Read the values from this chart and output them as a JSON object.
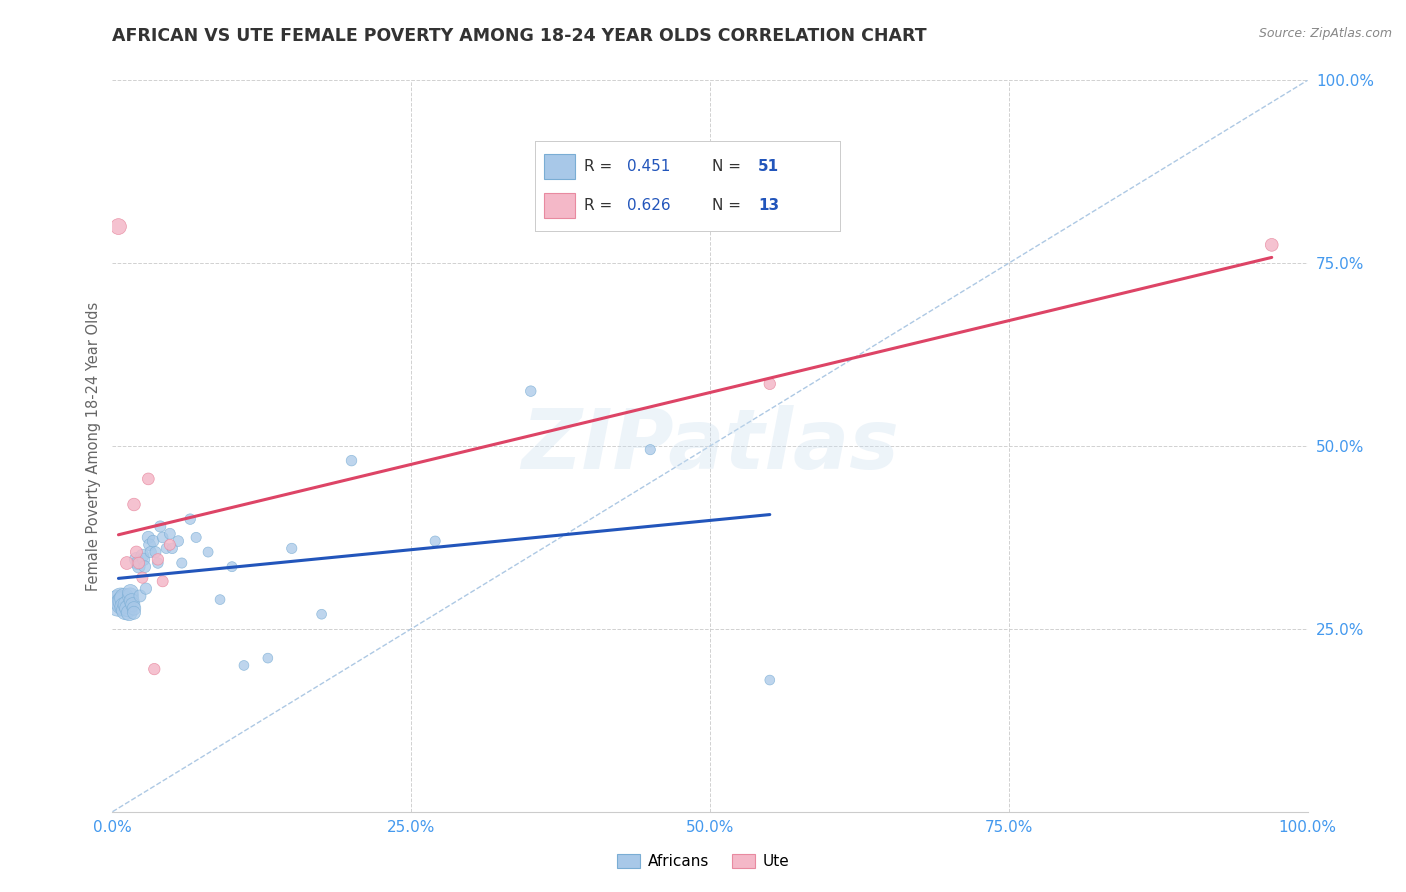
{
  "title": "AFRICAN VS UTE FEMALE POVERTY AMONG 18-24 YEAR OLDS CORRELATION CHART",
  "source": "Source: ZipAtlas.com",
  "ylabel": "Female Poverty Among 18-24 Year Olds",
  "watermark_text": "ZIPatlas",
  "african_R": 0.451,
  "african_N": 51,
  "ute_R": 0.626,
  "ute_N": 13,
  "african_color": "#a8c8e8",
  "african_color_edge": "#7aadd4",
  "ute_color": "#f4b8c8",
  "ute_color_edge": "#e88aa0",
  "trend_african_color": "#2255bb",
  "trend_ute_color": "#dd4466",
  "diagonal_color": "#99bbdd",
  "background_color": "#ffffff",
  "grid_color": "#cccccc",
  "title_color": "#333333",
  "axis_tick_color": "#4499ee",
  "ylabel_color": "#666666",
  "african_x": [
    0.005,
    0.007,
    0.008,
    0.009,
    0.01,
    0.01,
    0.011,
    0.012,
    0.013,
    0.014,
    0.015,
    0.015,
    0.016,
    0.017,
    0.018,
    0.018,
    0.02,
    0.021,
    0.022,
    0.023,
    0.025,
    0.026,
    0.027,
    0.028,
    0.03,
    0.031,
    0.032,
    0.034,
    0.036,
    0.038,
    0.04,
    0.042,
    0.045,
    0.048,
    0.05,
    0.055,
    0.058,
    0.065,
    0.07,
    0.08,
    0.09,
    0.1,
    0.11,
    0.13,
    0.15,
    0.175,
    0.2,
    0.27,
    0.35,
    0.45,
    0.55
  ],
  "african_y": [
    0.285,
    0.29,
    0.285,
    0.288,
    0.292,
    0.28,
    0.275,
    0.283,
    0.278,
    0.272,
    0.295,
    0.3,
    0.288,
    0.283,
    0.278,
    0.272,
    0.345,
    0.34,
    0.335,
    0.295,
    0.35,
    0.345,
    0.335,
    0.305,
    0.375,
    0.365,
    0.355,
    0.37,
    0.355,
    0.34,
    0.39,
    0.375,
    0.36,
    0.38,
    0.36,
    0.37,
    0.34,
    0.4,
    0.375,
    0.355,
    0.29,
    0.335,
    0.2,
    0.21,
    0.36,
    0.27,
    0.48,
    0.37,
    0.575,
    0.495,
    0.18
  ],
  "ute_x": [
    0.005,
    0.012,
    0.018,
    0.02,
    0.022,
    0.025,
    0.03,
    0.035,
    0.038,
    0.042,
    0.048,
    0.55,
    0.97
  ],
  "ute_y": [
    0.8,
    0.34,
    0.42,
    0.355,
    0.34,
    0.32,
    0.455,
    0.195,
    0.345,
    0.315,
    0.365,
    0.585,
    0.775
  ],
  "african_sizes": [
    350,
    280,
    250,
    220,
    200,
    190,
    175,
    160,
    145,
    130,
    135,
    125,
    115,
    105,
    95,
    88,
    100,
    90,
    83,
    76,
    88,
    80,
    73,
    67,
    78,
    72,
    66,
    70,
    64,
    58,
    65,
    60,
    55,
    62,
    57,
    60,
    54,
    58,
    54,
    52,
    50,
    52,
    50,
    50,
    55,
    50,
    58,
    54,
    58,
    54,
    50
  ],
  "ute_sizes": [
    130,
    85,
    82,
    75,
    70,
    65,
    72,
    67,
    68,
    63,
    63,
    68,
    85
  ],
  "xlim": [
    0.0,
    1.0
  ],
  "ylim": [
    0.0,
    1.0
  ],
  "xticks": [
    0.0,
    0.25,
    0.5,
    0.75,
    1.0
  ],
  "xtick_labels": [
    "0.0%",
    "25.0%",
    "50.0%",
    "75.0%",
    "100.0%"
  ],
  "ytick_positions": [
    0.25,
    0.5,
    0.75,
    1.0
  ],
  "ytick_labels": [
    "25.0%",
    "50.0%",
    "75.0%",
    "100.0%"
  ],
  "legend_value_color": "#2255bb"
}
